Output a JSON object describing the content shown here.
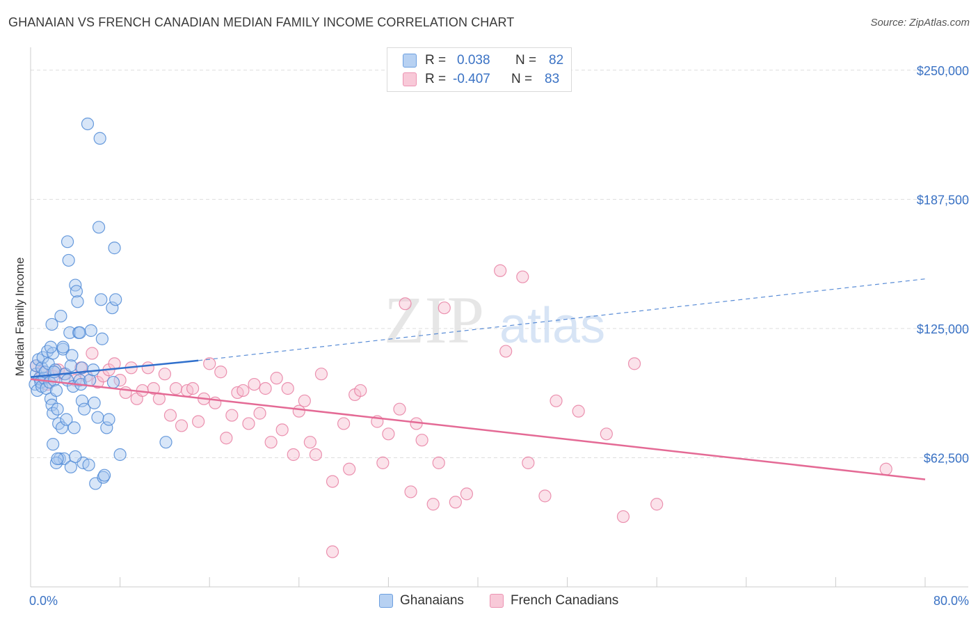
{
  "title": "GHANAIAN VS FRENCH CANADIAN MEDIAN FAMILY INCOME CORRELATION CHART",
  "source": "Source: ZipAtlas.com",
  "watermark": {
    "zip": "ZIP",
    "atlas": "atlas"
  },
  "legend": {
    "rows": [
      {
        "r_label": "R =",
        "r_value": "0.038",
        "n_label": "N =",
        "n_value": "82"
      },
      {
        "r_label": "R =",
        "r_value": "-0.407",
        "n_label": "N =",
        "n_value": "83"
      }
    ]
  },
  "bottom_legend": {
    "ghanaians": "Ghanaians",
    "french_canadians": "French Canadians"
  },
  "colors": {
    "blue_fill": "#a9c8ef",
    "blue_stroke": "#4f8ad6",
    "blue_line": "#2f6fcc",
    "pink_fill": "#f6bfd0",
    "pink_stroke": "#e87fa2",
    "pink_line": "#e46a95",
    "axis_text": "#3a72c4",
    "grid": "#dddddd"
  },
  "chart_data": {
    "type": "scatter",
    "title": "GHANAIAN VS FRENCH CANADIAN MEDIAN FAMILY INCOME CORRELATION CHART",
    "xlabel": "",
    "ylabel": "Median Family Income",
    "xlim": [
      0,
      80
    ],
    "ylim": [
      0,
      257000
    ],
    "x_tick_labels": [
      "0.0%",
      "80.0%"
    ],
    "y_ticks": [
      62500,
      125000,
      187500,
      250000
    ],
    "y_tick_labels": [
      "$62,500",
      "$125,000",
      "$187,500",
      "$250,000"
    ],
    "grid": true,
    "legend_position": "top-center",
    "series": [
      {
        "name": "Ghanaians",
        "r": 0.038,
        "n": 82,
        "trend": {
          "x": [
            0,
            15
          ],
          "y": [
            101500,
            109500
          ],
          "extended": {
            "x": [
              15,
              80
            ],
            "y": [
              109500,
              149000
            ]
          }
        },
        "points": [
          [
            0.4,
            98000
          ],
          [
            0.5,
            103000
          ],
          [
            0.5,
            107000
          ],
          [
            0.6,
            95000
          ],
          [
            0.7,
            110000
          ],
          [
            0.8,
            101000
          ],
          [
            0.9,
            99000
          ],
          [
            1.0,
            106000
          ],
          [
            1.0,
            97000
          ],
          [
            1.1,
            111000
          ],
          [
            1.2,
            101000
          ],
          [
            1.3,
            104000
          ],
          [
            1.4,
            96000
          ],
          [
            1.5,
            114000
          ],
          [
            1.6,
            108000
          ],
          [
            1.7,
            99000
          ],
          [
            1.8,
            91000
          ],
          [
            1.9,
            88000
          ],
          [
            2.0,
            113000
          ],
          [
            2.0,
            84000
          ],
          [
            2.1,
            100000
          ],
          [
            2.2,
            105000
          ],
          [
            2.3,
            95000
          ],
          [
            2.4,
            86000
          ],
          [
            2.5,
            79000
          ],
          [
            2.6,
            62000
          ],
          [
            2.8,
            77000
          ],
          [
            2.9,
            115000
          ],
          [
            3.0,
            62000
          ],
          [
            3.1,
            103000
          ],
          [
            3.2,
            81000
          ],
          [
            3.3,
            100000
          ],
          [
            3.5,
            123000
          ],
          [
            3.6,
            58000
          ],
          [
            3.7,
            112000
          ],
          [
            3.8,
            97000
          ],
          [
            3.9,
            77000
          ],
          [
            4.0,
            146000
          ],
          [
            4.1,
            143000
          ],
          [
            4.2,
            138000
          ],
          [
            4.3,
            123000
          ],
          [
            4.4,
            100000
          ],
          [
            4.5,
            98000
          ],
          [
            4.6,
            90000
          ],
          [
            4.7,
            60000
          ],
          [
            4.8,
            86000
          ],
          [
            2.0,
            69000
          ],
          [
            1.9,
            127000
          ],
          [
            1.8,
            116000
          ],
          [
            2.1,
            104000
          ],
          [
            2.3,
            60000
          ],
          [
            2.7,
            131000
          ],
          [
            2.9,
            116000
          ],
          [
            3.3,
            167000
          ],
          [
            3.4,
            158000
          ],
          [
            3.6,
            107000
          ],
          [
            4.0,
            63000
          ],
          [
            4.4,
            123000
          ],
          [
            5.2,
            59000
          ],
          [
            5.3,
            100000
          ],
          [
            5.4,
            124000
          ],
          [
            5.6,
            105000
          ],
          [
            5.7,
            89000
          ],
          [
            5.8,
            50000
          ],
          [
            6.0,
            82000
          ],
          [
            6.1,
            174000
          ],
          [
            6.2,
            217000
          ],
          [
            6.3,
            139000
          ],
          [
            6.4,
            120000
          ],
          [
            6.5,
            53000
          ],
          [
            6.6,
            54000
          ],
          [
            6.8,
            77000
          ],
          [
            7.0,
            81000
          ],
          [
            7.3,
            135000
          ],
          [
            7.4,
            99000
          ],
          [
            7.5,
            164000
          ],
          [
            7.6,
            139000
          ],
          [
            8.0,
            64000
          ],
          [
            12.1,
            70000
          ],
          [
            5.1,
            224000
          ],
          [
            4.6,
            106000
          ],
          [
            2.4,
            62000
          ]
        ]
      },
      {
        "name": "French Canadians",
        "r": -0.407,
        "n": 83,
        "trend": {
          "x": [
            0,
            80
          ],
          "y": [
            100500,
            52000
          ]
        },
        "points": [
          [
            0.5,
            107000
          ],
          [
            0.8,
            101000
          ],
          [
            1.0,
            104000
          ],
          [
            1.5,
            98000
          ],
          [
            2.0,
            102000
          ],
          [
            2.5,
            105000
          ],
          [
            3.0,
            103000
          ],
          [
            4.0,
            100000
          ],
          [
            4.5,
            106000
          ],
          [
            5.0,
            102000
          ],
          [
            5.5,
            113000
          ],
          [
            6.0,
            99000
          ],
          [
            6.5,
            102000
          ],
          [
            7.0,
            105000
          ],
          [
            7.5,
            108000
          ],
          [
            8.0,
            100000
          ],
          [
            8.5,
            94000
          ],
          [
            9.0,
            106000
          ],
          [
            9.5,
            91000
          ],
          [
            10.0,
            95000
          ],
          [
            10.5,
            106000
          ],
          [
            11.0,
            96000
          ],
          [
            11.5,
            91000
          ],
          [
            12.0,
            103000
          ],
          [
            12.5,
            83000
          ],
          [
            13.0,
            96000
          ],
          [
            13.5,
            78000
          ],
          [
            14.0,
            95000
          ],
          [
            14.5,
            96000
          ],
          [
            15.0,
            80000
          ],
          [
            15.5,
            91000
          ],
          [
            16.0,
            108000
          ],
          [
            16.5,
            89000
          ],
          [
            17.0,
            104000
          ],
          [
            17.5,
            72000
          ],
          [
            18.0,
            83000
          ],
          [
            18.5,
            94000
          ],
          [
            19.0,
            95000
          ],
          [
            19.5,
            79000
          ],
          [
            20.0,
            98000
          ],
          [
            20.5,
            84000
          ],
          [
            21.0,
            96000
          ],
          [
            21.5,
            70000
          ],
          [
            22.0,
            101000
          ],
          [
            22.5,
            76000
          ],
          [
            23.0,
            96000
          ],
          [
            23.5,
            64000
          ],
          [
            24.0,
            85000
          ],
          [
            24.5,
            90000
          ],
          [
            25.0,
            70000
          ],
          [
            25.5,
            64000
          ],
          [
            26.0,
            103000
          ],
          [
            27.0,
            51000
          ],
          [
            28.0,
            79000
          ],
          [
            28.5,
            57000
          ],
          [
            29.0,
            93000
          ],
          [
            29.5,
            95000
          ],
          [
            31.0,
            80000
          ],
          [
            31.5,
            60000
          ],
          [
            32.0,
            74000
          ],
          [
            33.0,
            86000
          ],
          [
            33.5,
            137000
          ],
          [
            34.0,
            46000
          ],
          [
            34.5,
            79000
          ],
          [
            35.0,
            71000
          ],
          [
            36.0,
            40000
          ],
          [
            36.5,
            60000
          ],
          [
            37.0,
            135000
          ],
          [
            38.0,
            41000
          ],
          [
            39.0,
            45000
          ],
          [
            42.0,
            153000
          ],
          [
            42.5,
            114000
          ],
          [
            44.0,
            150000
          ],
          [
            44.5,
            60000
          ],
          [
            46.0,
            44000
          ],
          [
            47.0,
            90000
          ],
          [
            49.0,
            85000
          ],
          [
            51.5,
            74000
          ],
          [
            53.0,
            34000
          ],
          [
            54.0,
            108000
          ],
          [
            56.0,
            40000
          ],
          [
            27.0,
            17000
          ],
          [
            76.5,
            57000
          ]
        ]
      }
    ]
  }
}
